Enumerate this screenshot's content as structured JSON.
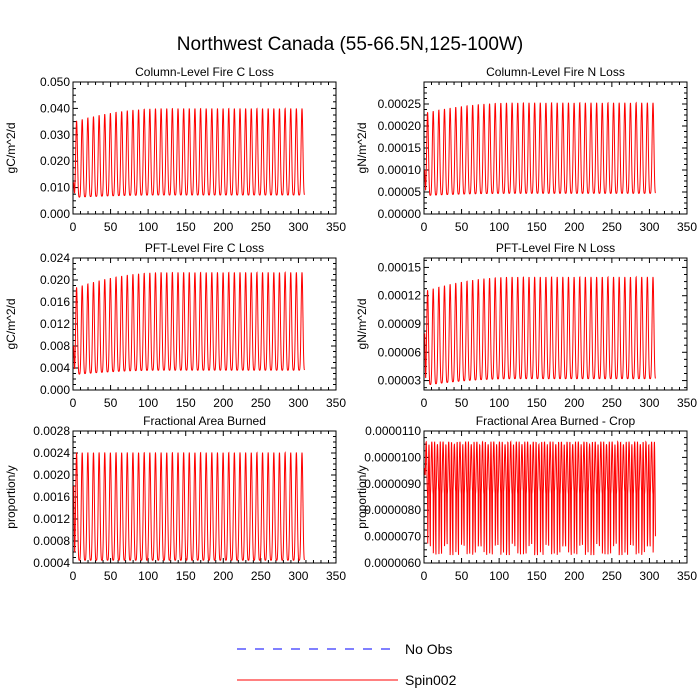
{
  "figure": {
    "title": "Northwest Canada (55-66.5N,125-100W)"
  },
  "legend": {
    "entries": [
      {
        "label": "No Obs",
        "color": "#0000ff",
        "dash": "dashed"
      },
      {
        "label": "Spin002",
        "color": "#ff0000",
        "dash": "solid"
      }
    ],
    "placement": "bottom-center"
  },
  "chart_data": [
    {
      "type": "line",
      "title": "Column-Level Fire C Loss",
      "xlabel": "",
      "ylabel": "gC/m^2/d",
      "xlim": [
        0,
        350
      ],
      "ylim": [
        0.0,
        0.05
      ],
      "xticks": [
        "0",
        "50",
        "100",
        "150",
        "200",
        "250",
        "300",
        "350"
      ],
      "yticks": [
        "0.000",
        "0.010",
        "0.020",
        "0.030",
        "0.040",
        "0.050"
      ],
      "grid": false,
      "series": [
        {
          "name": "Spin002",
          "color": "#ff0000",
          "x_end": 308,
          "period": 7.5,
          "max_start": 0.035,
          "max_end": 0.04,
          "min_start": 0.0063,
          "min_end": 0.0072,
          "initial": 0.012
        }
      ]
    },
    {
      "type": "line",
      "title": "Column-Level Fire N Loss",
      "xlabel": "",
      "ylabel": "gN/m^2/d",
      "xlim": [
        0,
        350
      ],
      "ylim": [
        0.0,
        0.0003
      ],
      "xticks": [
        "0",
        "50",
        "100",
        "150",
        "200",
        "250",
        "300",
        "350"
      ],
      "yticks": [
        "0.00000",
        "0.00005",
        "0.00010",
        "0.00015",
        "0.00020",
        "0.00025"
      ],
      "grid": false,
      "series": [
        {
          "name": "Spin002",
          "color": "#ff0000",
          "x_end": 308,
          "period": 7.5,
          "max_start": 0.00023,
          "max_end": 0.000253,
          "min_start": 4.2e-05,
          "min_end": 4.7e-05,
          "initial": 0.0001
        }
      ]
    },
    {
      "type": "line",
      "title": "PFT-Level Fire C Loss",
      "xlabel": "",
      "ylabel": "gC/m^2/d",
      "xlim": [
        0,
        350
      ],
      "ylim": [
        0.0,
        0.024
      ],
      "xticks": [
        "0",
        "50",
        "100",
        "150",
        "200",
        "250",
        "300",
        "350"
      ],
      "yticks": [
        "0.000",
        "0.004",
        "0.008",
        "0.012",
        "0.016",
        "0.020",
        "0.024"
      ],
      "grid": false,
      "series": [
        {
          "name": "Spin002",
          "color": "#ff0000",
          "x_end": 308,
          "period": 7.5,
          "max_start": 0.0185,
          "max_end": 0.0214,
          "min_start": 0.0028,
          "min_end": 0.0036,
          "initial": 0.008
        }
      ]
    },
    {
      "type": "line",
      "title": "PFT-Level Fire N Loss",
      "xlabel": "",
      "ylabel": "gN/m^2/d",
      "xlim": [
        0,
        350
      ],
      "ylim": [
        2e-05,
        0.00016
      ],
      "xticks": [
        "0",
        "50",
        "100",
        "150",
        "200",
        "250",
        "300",
        "350"
      ],
      "yticks": [
        "0.00003",
        "0.00006",
        "0.00009",
        "0.00012",
        "0.00015"
      ],
      "grid": false,
      "series": [
        {
          "name": "Spin002",
          "color": "#ff0000",
          "x_end": 308,
          "period": 7.5,
          "max_start": 0.000125,
          "max_end": 0.00014,
          "min_start": 2.5e-05,
          "min_end": 3.2e-05,
          "initial": 8e-05
        }
      ]
    },
    {
      "type": "line",
      "title": "Fractional Area Burned",
      "xlabel": "",
      "ylabel": "proportion/y",
      "xlim": [
        0,
        350
      ],
      "ylim": [
        0.0004,
        0.0028
      ],
      "xticks": [
        "0",
        "50",
        "100",
        "150",
        "200",
        "250",
        "300",
        "350"
      ],
      "yticks": [
        "0.0004",
        "0.0008",
        "0.0012",
        "0.0016",
        "0.0020",
        "0.0024",
        "0.0028"
      ],
      "grid": false,
      "series": [
        {
          "name": "Spin002",
          "color": "#ff0000",
          "x_end": 308,
          "period": 7.5,
          "max_start": 0.00241,
          "max_end": 0.00241,
          "min_start": 0.00045,
          "min_end": 0.00045,
          "initial": 0.0018
        }
      ]
    },
    {
      "type": "line",
      "title": "Fractional Area Burned - Crop",
      "xlabel": "",
      "ylabel": "proportion/y",
      "xlim": [
        0,
        350
      ],
      "ylim": [
        6e-06,
        1.1e-05
      ],
      "xticks": [
        "0",
        "50",
        "100",
        "150",
        "200",
        "250",
        "300",
        "350"
      ],
      "yticks": [
        "0.0000060",
        "0.0000070",
        "0.0000080",
        "0.0000090",
        "0.0000100",
        "0.0000110"
      ],
      "grid": false,
      "series": [
        {
          "name": "Spin002",
          "color": "#ff0000",
          "x_end": 308,
          "period": 3.75,
          "max_start": 1.06e-05,
          "max_end": 1.06e-05,
          "min_start": 8.6e-06,
          "min_end": 8.6e-06,
          "alt_min": 6.3e-06,
          "mid_band": 9.6e-06,
          "initial": 9.6e-06
        }
      ]
    }
  ]
}
